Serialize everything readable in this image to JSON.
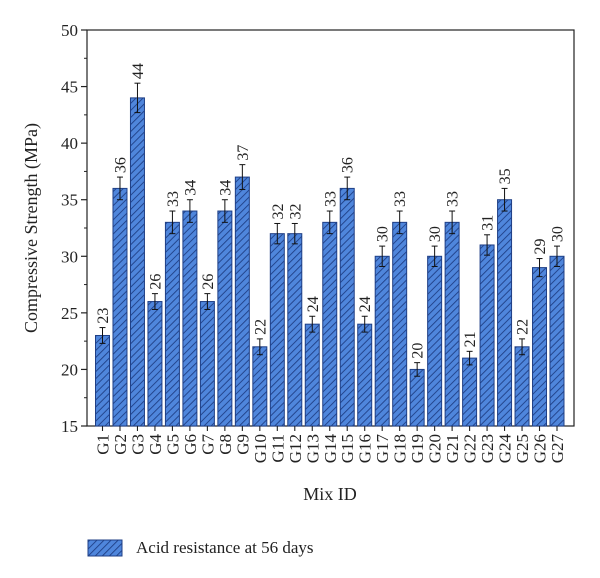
{
  "chart_data": {
    "type": "bar",
    "title": "",
    "xlabel": "Mix ID",
    "ylabel": "Compressive Strength (MPa)",
    "ylim": [
      15,
      50
    ],
    "yticks": [
      15,
      20,
      25,
      30,
      35,
      40,
      45,
      50
    ],
    "grid": false,
    "legend_position": "bottom-left",
    "categories": [
      "G1",
      "G2",
      "G3",
      "G4",
      "G5",
      "G6",
      "G7",
      "G8",
      "G9",
      "G10",
      "G11",
      "G12",
      "G13",
      "G14",
      "G15",
      "G16",
      "G17",
      "G18",
      "G19",
      "G20",
      "G21",
      "G22",
      "G23",
      "G24",
      "G25",
      "G26",
      "G27"
    ],
    "series": [
      {
        "name": "Acid resistance at 56 days",
        "values": [
          23,
          36,
          44,
          26,
          33,
          34,
          26,
          34,
          37,
          22,
          32,
          32,
          24,
          33,
          36,
          24,
          30,
          33,
          20,
          30,
          33,
          21,
          31,
          35,
          22,
          29,
          30
        ],
        "error": [
          0.7,
          1.0,
          1.3,
          0.7,
          1.0,
          1.0,
          0.7,
          1.0,
          1.1,
          0.7,
          0.9,
          0.9,
          0.7,
          1.0,
          1.0,
          0.7,
          0.9,
          1.0,
          0.6,
          0.9,
          1.0,
          0.6,
          0.9,
          1.0,
          0.7,
          0.8,
          0.9
        ],
        "data_labels": [
          "23",
          "36",
          "44",
          "26",
          "33",
          "34",
          "26",
          "34",
          "37",
          "22",
          "32",
          "32",
          "24",
          "33",
          "36",
          "24",
          "30",
          "33",
          "20",
          "30",
          "33",
          "21",
          "31",
          "35",
          "22",
          "29",
          "30"
        ],
        "color": "#4a7fd6",
        "hatch_color": "#1a3f8a"
      }
    ]
  }
}
